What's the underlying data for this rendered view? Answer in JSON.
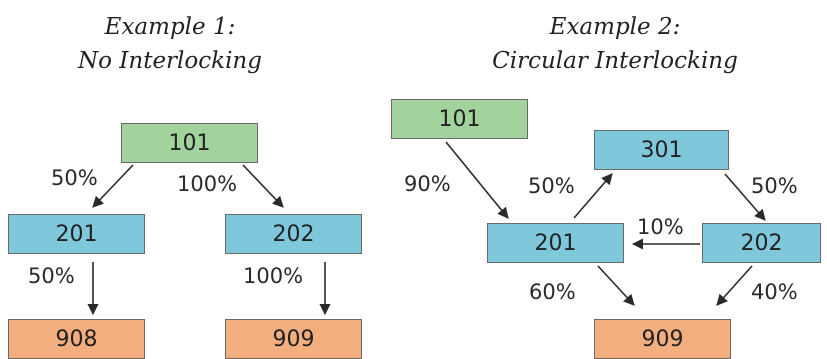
{
  "colors": {
    "green_box": "#a3d39c",
    "blue_box": "#7fc8dc",
    "orange_box": "#f2ae7e",
    "arrow": "#2a2a2a"
  },
  "example1": {
    "title_line1": "Example 1:",
    "title_line2": "No Interlocking",
    "nodes": {
      "n101": "101",
      "n201": "201",
      "n202": "202",
      "n908": "908",
      "n909": "909"
    },
    "edges": {
      "e101_201": "50%",
      "e101_202": "100%",
      "e201_908": "50%",
      "e202_909": "100%"
    }
  },
  "example2": {
    "title_line1": "Example 2:",
    "title_line2": "Circular Interlocking",
    "nodes": {
      "n101": "101",
      "n301": "301",
      "n201": "201",
      "n202": "202",
      "n909": "909"
    },
    "edges": {
      "e101_201": "90%",
      "e201_301": "50%",
      "e301_202": "50%",
      "e202_201": "10%",
      "e201_909": "60%",
      "e202_909": "40%"
    }
  }
}
